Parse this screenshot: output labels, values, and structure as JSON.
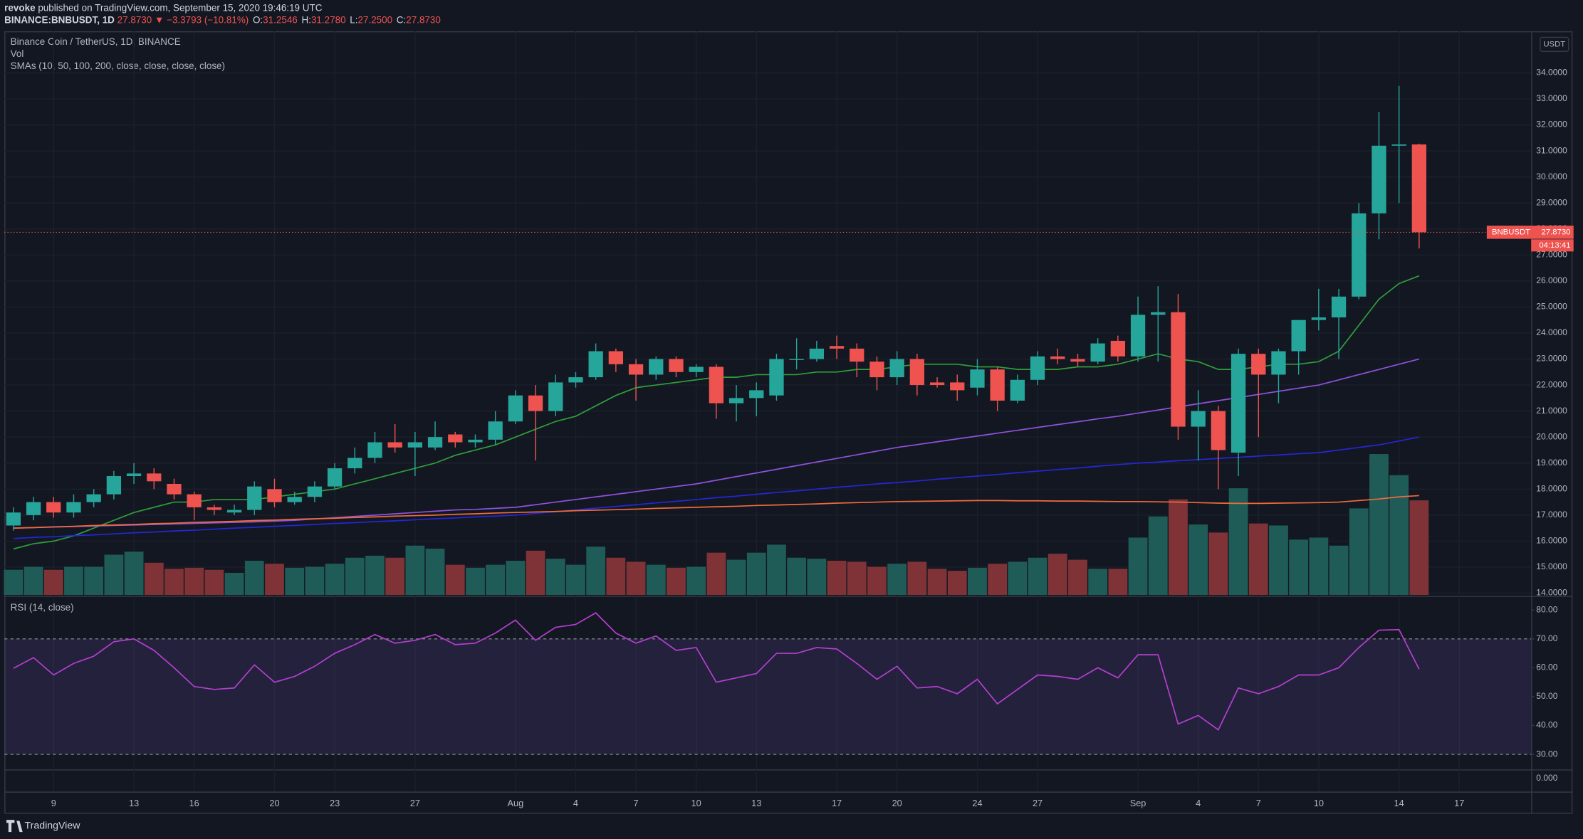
{
  "header": {
    "publisher": "revoke",
    "published": "published on TradingView.com, September 15, 2020 19:46:19 UTC",
    "symbol": "BINANCE:BNBUSDT, 1D",
    "last": "27.8730",
    "change": "▼ −3.3793 (−10.81%)",
    "ohlc": [
      {
        "key": "O:",
        "value": "31.2546"
      },
      {
        "key": "H:",
        "value": "31.2780"
      },
      {
        "key": "L:",
        "value": "27.2500"
      },
      {
        "key": "C:",
        "value": "27.8730"
      }
    ]
  },
  "legend": {
    "pair": "Binance Coin / TetherUS, 1D, BINANCE",
    "volume": "Vol",
    "smas": "SMAs (10, 50, 100, 200, close, close, close, close)"
  },
  "currency": "USDT",
  "price_tag": {
    "symbol": "BNBUSDT",
    "value": 27.873,
    "label": "27.8730",
    "countdown": "04:13:41"
  },
  "bottom_pane": {
    "yticks": [
      {
        "value": 0,
        "label": "0.000"
      }
    ]
  },
  "footer": {
    "brand": "TradingView"
  },
  "chart_data": [
    {
      "type": "candlestick",
      "up_color": "#26a69a",
      "down_color": "#ef5350",
      "up_volume_color": "#1f5c58",
      "down_volume_color": "#7f3336",
      "grid": true,
      "xlim": [
        -0.45,
        75.58
      ],
      "xticks": [
        {
          "value": 2,
          "label": "9"
        },
        {
          "value": 6,
          "label": "13"
        },
        {
          "value": 9,
          "label": "16"
        },
        {
          "value": 13,
          "label": "20"
        },
        {
          "value": 16,
          "label": "23"
        },
        {
          "value": 20,
          "label": "27"
        },
        {
          "value": 25,
          "label": "Aug"
        },
        {
          "value": 28,
          "label": "4"
        },
        {
          "value": 31,
          "label": "7"
        },
        {
          "value": 34,
          "label": "10"
        },
        {
          "value": 37,
          "label": "13"
        },
        {
          "value": 41,
          "label": "17"
        },
        {
          "value": 44,
          "label": "20"
        },
        {
          "value": 48,
          "label": "24"
        },
        {
          "value": 51,
          "label": "27"
        },
        {
          "value": 56,
          "label": "Sep"
        },
        {
          "value": 59,
          "label": "4"
        },
        {
          "value": 62,
          "label": "7"
        },
        {
          "value": 65,
          "label": "10"
        },
        {
          "value": 69,
          "label": "14"
        },
        {
          "value": 72,
          "label": "17"
        }
      ],
      "ylim": [
        13.93,
        35.6
      ],
      "yticks": [
        {
          "value": 34,
          "label": "34.0000"
        },
        {
          "value": 33,
          "label": "33.0000"
        },
        {
          "value": 32,
          "label": "32.0000"
        },
        {
          "value": 31,
          "label": "31.0000"
        },
        {
          "value": 30,
          "label": "30.0000"
        },
        {
          "value": 29,
          "label": "29.0000"
        },
        {
          "value": 28,
          "label": "28.0000"
        },
        {
          "value": 27,
          "label": "27.0000"
        },
        {
          "value": 26,
          "label": "26.0000"
        },
        {
          "value": 25,
          "label": "25.0000"
        },
        {
          "value": 24,
          "label": "24.0000"
        },
        {
          "value": 23,
          "label": "23.0000"
        },
        {
          "value": 22,
          "label": "22.0000"
        },
        {
          "value": 21,
          "label": "21.0000"
        },
        {
          "value": 20,
          "label": "20.0000"
        },
        {
          "value": 19,
          "label": "19.0000"
        },
        {
          "value": 18,
          "label": "18.0000"
        },
        {
          "value": 17,
          "label": "17.0000"
        },
        {
          "value": 16,
          "label": "16.0000"
        },
        {
          "value": 15,
          "label": "15.0000"
        },
        {
          "value": 14,
          "label": "14.0000"
        }
      ],
      "open": [
        16.6,
        17.0,
        17.5,
        17.1,
        17.5,
        17.8,
        18.5,
        18.6,
        18.2,
        17.8,
        17.3,
        17.1,
        17.2,
        18.0,
        17.5,
        17.7,
        18.1,
        18.8,
        19.2,
        19.8,
        19.6,
        19.6,
        20.1,
        19.8,
        19.9,
        20.6,
        21.6,
        21.0,
        22.1,
        22.3,
        23.3,
        22.8,
        22.4,
        23.0,
        22.5,
        22.7,
        21.3,
        21.5,
        21.6,
        23.0,
        23.0,
        23.5,
        23.4,
        22.9,
        22.3,
        23.0,
        22.1,
        22.1,
        21.9,
        22.6,
        21.4,
        22.2,
        23.1,
        23.0,
        22.9,
        23.7,
        23.1,
        24.7,
        24.8,
        20.4,
        21.0,
        19.4,
        23.2,
        22.4,
        23.3,
        24.5,
        24.6,
        25.4,
        28.6,
        31.2,
        31.25
      ],
      "high": [
        17.3,
        17.7,
        17.7,
        17.8,
        18.0,
        18.7,
        19.0,
        18.8,
        18.4,
        17.9,
        17.4,
        17.4,
        18.3,
        18.4,
        17.9,
        18.3,
        19.0,
        19.6,
        20.2,
        20.5,
        20.2,
        20.6,
        20.2,
        20.1,
        21.0,
        21.8,
        22.0,
        22.4,
        22.5,
        23.6,
        23.4,
        23.0,
        23.1,
        23.1,
        22.8,
        22.8,
        22.0,
        22.1,
        23.2,
        23.8,
        23.7,
        23.9,
        23.6,
        23.1,
        23.3,
        23.2,
        22.3,
        22.4,
        23.0,
        22.7,
        22.4,
        23.3,
        23.4,
        23.2,
        23.8,
        23.9,
        25.4,
        25.8,
        25.5,
        21.8,
        21.2,
        23.4,
        23.4,
        23.4,
        24.5,
        25.7,
        25.7,
        29.0,
        32.5,
        33.5,
        31.28
      ],
      "low": [
        16.4,
        16.8,
        16.9,
        16.9,
        17.3,
        17.6,
        18.2,
        18.0,
        17.6,
        16.8,
        17.0,
        17.0,
        17.0,
        17.3,
        17.4,
        17.5,
        18.0,
        18.6,
        19.0,
        19.4,
        18.5,
        19.5,
        19.6,
        19.6,
        19.7,
        20.5,
        19.1,
        20.8,
        21.9,
        22.2,
        22.5,
        21.4,
        22.2,
        22.3,
        22.3,
        20.7,
        20.6,
        20.8,
        21.4,
        22.6,
        22.9,
        23.0,
        22.3,
        21.8,
        22.0,
        21.6,
        21.9,
        21.4,
        21.6,
        21.0,
        21.3,
        22.0,
        22.8,
        22.7,
        22.8,
        22.9,
        22.9,
        22.9,
        19.9,
        19.1,
        18.0,
        18.5,
        20.0,
        21.3,
        22.4,
        24.1,
        23.0,
        25.3,
        27.6,
        29.0,
        27.25
      ],
      "close": [
        17.1,
        17.5,
        17.1,
        17.5,
        17.8,
        18.5,
        18.6,
        18.3,
        17.8,
        17.3,
        17.2,
        17.2,
        18.1,
        17.5,
        17.7,
        18.1,
        18.8,
        19.2,
        19.8,
        19.6,
        19.8,
        20.0,
        19.8,
        19.9,
        20.6,
        21.6,
        21.0,
        22.1,
        22.3,
        23.3,
        22.8,
        22.4,
        23.0,
        22.5,
        22.7,
        21.3,
        21.5,
        21.8,
        23.0,
        23.0,
        23.4,
        23.4,
        22.9,
        22.3,
        23.0,
        22.0,
        22.0,
        21.8,
        22.6,
        21.4,
        22.2,
        23.1,
        23.0,
        22.9,
        23.6,
        23.1,
        24.7,
        24.8,
        20.4,
        21.0,
        19.5,
        23.2,
        22.4,
        23.3,
        24.5,
        24.6,
        25.4,
        28.6,
        31.2,
        31.25,
        27.873
      ],
      "volume": [
        25,
        28,
        25,
        28,
        28,
        40,
        43,
        32,
        26,
        27,
        25,
        22,
        34,
        31,
        27,
        28,
        31,
        37,
        39,
        37,
        49,
        46,
        30,
        27,
        30,
        34,
        44,
        36,
        30,
        48,
        37,
        33,
        30,
        27,
        28,
        42,
        35,
        42,
        50,
        37,
        36,
        34,
        33,
        28,
        31,
        33,
        26,
        24,
        27,
        31,
        33,
        37,
        41,
        35,
        26,
        26,
        57,
        78,
        95,
        70,
        62,
        106,
        71,
        69,
        55,
        57,
        49,
        86,
        140,
        119,
        94
      ],
      "series": [
        {
          "color": "#2f9e3a",
          "values": [
            15.7,
            15.9,
            16.0,
            16.2,
            16.5,
            16.8,
            17.1,
            17.3,
            17.5,
            17.5,
            17.6,
            17.6,
            17.6,
            17.7,
            17.8,
            17.9,
            18.0,
            18.2,
            18.4,
            18.6,
            18.8,
            19.0,
            19.3,
            19.5,
            19.7,
            20.0,
            20.3,
            20.6,
            20.8,
            21.2,
            21.6,
            21.9,
            22.0,
            22.1,
            22.2,
            22.3,
            22.3,
            22.4,
            22.4,
            22.4,
            22.5,
            22.5,
            22.6,
            22.6,
            22.7,
            22.8,
            22.8,
            22.8,
            22.7,
            22.7,
            22.6,
            22.6,
            22.6,
            22.7,
            22.7,
            22.8,
            23.0,
            23.2,
            23.0,
            22.9,
            22.6,
            22.6,
            22.7,
            22.8,
            22.8,
            22.9,
            23.3,
            24.3,
            25.3,
            25.9,
            26.2
          ]
        },
        {
          "color": "#8f52dc",
          "values": [
            16.5,
            16.52,
            16.54,
            16.56,
            16.58,
            16.6,
            16.62,
            16.64,
            16.66,
            16.68,
            16.7,
            16.72,
            16.74,
            16.77,
            16.8,
            16.85,
            16.9,
            16.95,
            17.0,
            17.05,
            17.1,
            17.15,
            17.2,
            17.22,
            17.26,
            17.3,
            17.4,
            17.5,
            17.6,
            17.7,
            17.8,
            17.9,
            18.0,
            18.1,
            18.2,
            18.34,
            18.48,
            18.62,
            18.76,
            18.9,
            19.04,
            19.18,
            19.32,
            19.46,
            19.6,
            19.71,
            19.82,
            19.93,
            20.04,
            20.15,
            20.26,
            20.37,
            20.48,
            20.59,
            20.7,
            20.8,
            20.92,
            21.04,
            21.16,
            21.28,
            21.4,
            21.52,
            21.64,
            21.76,
            21.88,
            22.0,
            22.2,
            22.4,
            22.6,
            22.8,
            23.0
          ]
        },
        {
          "color": "#2328d6",
          "values": [
            16.1,
            16.14,
            16.17,
            16.21,
            16.24,
            16.28,
            16.32,
            16.35,
            16.39,
            16.42,
            16.46,
            16.5,
            16.53,
            16.57,
            16.6,
            16.64,
            16.68,
            16.71,
            16.75,
            16.78,
            16.82,
            16.86,
            16.89,
            16.93,
            16.96,
            17.0,
            17.07,
            17.13,
            17.2,
            17.27,
            17.33,
            17.4,
            17.47,
            17.53,
            17.6,
            17.67,
            17.73,
            17.8,
            17.87,
            17.93,
            18.0,
            18.07,
            18.13,
            18.2,
            18.25,
            18.31,
            18.38,
            18.44,
            18.5,
            18.56,
            18.63,
            18.69,
            18.75,
            18.81,
            18.88,
            18.94,
            19.0,
            19.04,
            19.09,
            19.13,
            19.18,
            19.22,
            19.27,
            19.31,
            19.36,
            19.4,
            19.5,
            19.6,
            19.7,
            19.85,
            20.0
          ]
        },
        {
          "color": "#f26b3a",
          "values": [
            16.5,
            16.52,
            16.55,
            16.57,
            16.6,
            16.62,
            16.64,
            16.67,
            16.69,
            16.72,
            16.74,
            16.76,
            16.79,
            16.81,
            16.84,
            16.86,
            16.88,
            16.91,
            16.93,
            16.96,
            16.98,
            17.0,
            17.03,
            17.05,
            17.08,
            17.1,
            17.12,
            17.14,
            17.17,
            17.19,
            17.21,
            17.23,
            17.26,
            17.28,
            17.3,
            17.32,
            17.34,
            17.37,
            17.39,
            17.41,
            17.43,
            17.46,
            17.48,
            17.5,
            17.52,
            17.53,
            17.54,
            17.55,
            17.56,
            17.56,
            17.55,
            17.55,
            17.54,
            17.54,
            17.53,
            17.52,
            17.52,
            17.51,
            17.5,
            17.48,
            17.46,
            17.45,
            17.45,
            17.46,
            17.47,
            17.48,
            17.5,
            17.56,
            17.62,
            17.7,
            17.75
          ]
        }
      ]
    },
    {
      "type": "line",
      "title": "RSI (14, close)",
      "color": "#b53fd0",
      "band_color": "#7e57c2",
      "bands": [
        30,
        70
      ],
      "ylim": [
        24.8,
        84.5
      ],
      "yticks": [
        {
          "value": 80,
          "label": "80.00"
        },
        {
          "value": 70,
          "label": "70.00"
        },
        {
          "value": 60,
          "label": "60.00"
        },
        {
          "value": 50,
          "label": "50.00"
        },
        {
          "value": 40,
          "label": "40.00"
        },
        {
          "value": 30,
          "label": "30.00"
        }
      ],
      "values": [
        59.8,
        63.5,
        57.5,
        61.5,
        64,
        69,
        70,
        66,
        60,
        53.5,
        52.5,
        53,
        61,
        55,
        57,
        60.5,
        65,
        68,
        71.5,
        68.5,
        69.5,
        71.5,
        68,
        68.5,
        72,
        76.5,
        69.5,
        74,
        75,
        79,
        72,
        68.5,
        71,
        66,
        67,
        55,
        56.5,
        58,
        65,
        65,
        67,
        66.5,
        61.5,
        56,
        60.5,
        53,
        53.5,
        51,
        56,
        47.5,
        52.5,
        57.5,
        57,
        56,
        60,
        56.5,
        64.5,
        64.5,
        40.5,
        43.5,
        38.5,
        53,
        51,
        53.5,
        57.5,
        57.5,
        60,
        67,
        73,
        73.2,
        59.5
      ]
    }
  ]
}
